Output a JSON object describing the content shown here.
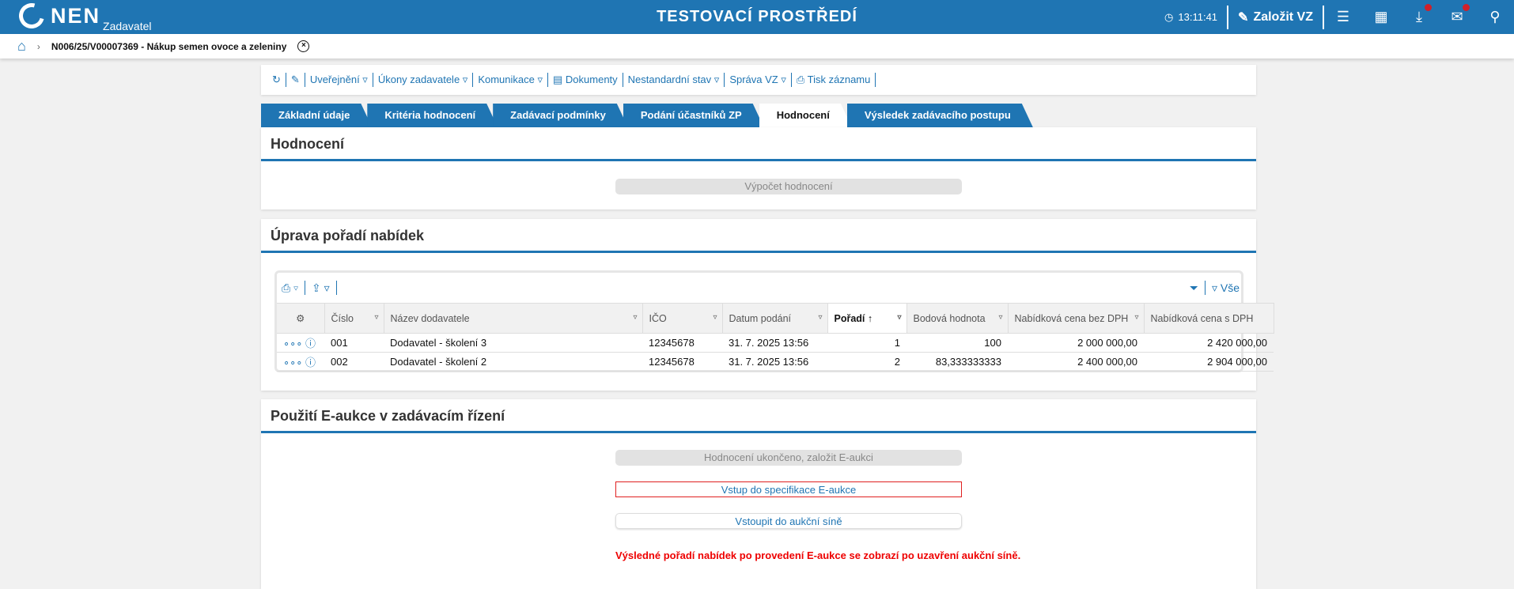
{
  "header": {
    "logo": "NEN",
    "logo_sub": "Zadavatel",
    "environment": "TESTOVACÍ PROSTŘEDÍ",
    "time": "13:11:41",
    "create_label": "Založit VZ",
    "icons": [
      "menu-icon",
      "calendar-icon",
      "download-icon",
      "mail-icon",
      "user-icon"
    ]
  },
  "breadcrumb": {
    "title": "N006/25/V00007369 - Nákup semen ovoce a zeleniny"
  },
  "toolbar": {
    "items": [
      "Uveřejnění ▿",
      "Úkony zadavatele ▿",
      "Komunikace ▿",
      "Dokumenty",
      "Nestandardní stav ▿",
      "Správa VZ ▿",
      "Tisk záznamu"
    ]
  },
  "tabs": [
    {
      "label": "Základní údaje"
    },
    {
      "label": "Kritéria hodnocení"
    },
    {
      "label": "Zadávací podmínky"
    },
    {
      "label": "Podání účastníků ZP"
    },
    {
      "label": "Hodnocení",
      "active": true
    },
    {
      "label": "Výsledek zadávacího postupu"
    }
  ],
  "evaluation": {
    "title": "Hodnocení",
    "compute_button": "Výpočet hodnocení"
  },
  "ranking": {
    "title": "Úprava pořadí nabídek",
    "filter_all": "Vše",
    "columns": [
      "Číslo",
      "Název dodavatele",
      "IČO",
      "Datum podání",
      "Pořadí",
      "Bodová hodnota",
      "Nabídková cena bez DPH",
      "Nabídková cena s DPH"
    ],
    "rows": [
      {
        "cislo": "001",
        "nazev": "Dodavatel - školení 3",
        "ico": "12345678",
        "datum": "31. 7. 2025 13:56",
        "poradi": "1",
        "body": "100",
        "bez": "2 000 000,00",
        "s": "2 420 000,00"
      },
      {
        "cislo": "002",
        "nazev": "Dodavatel - školení 2",
        "ico": "12345678",
        "datum": "31. 7. 2025 13:56",
        "poradi": "2",
        "body": "83,333333333",
        "bez": "2 400 000,00",
        "s": "2 904 000,00"
      }
    ]
  },
  "eauction": {
    "title": "Použití E-aukce v zadávacím řízení",
    "btn_finished": "Hodnocení ukončeno, založit E-aukci",
    "btn_spec": "Vstup do specifikace E-aukce",
    "btn_hall": "Vstoupit do aukční síně",
    "note": "Výsledné pořadí nabídek po provedení E-aukce se zobrazí po uzavření aukční síně."
  },
  "colors": {
    "brand": "#1f75b3",
    "error": "#e00000"
  }
}
